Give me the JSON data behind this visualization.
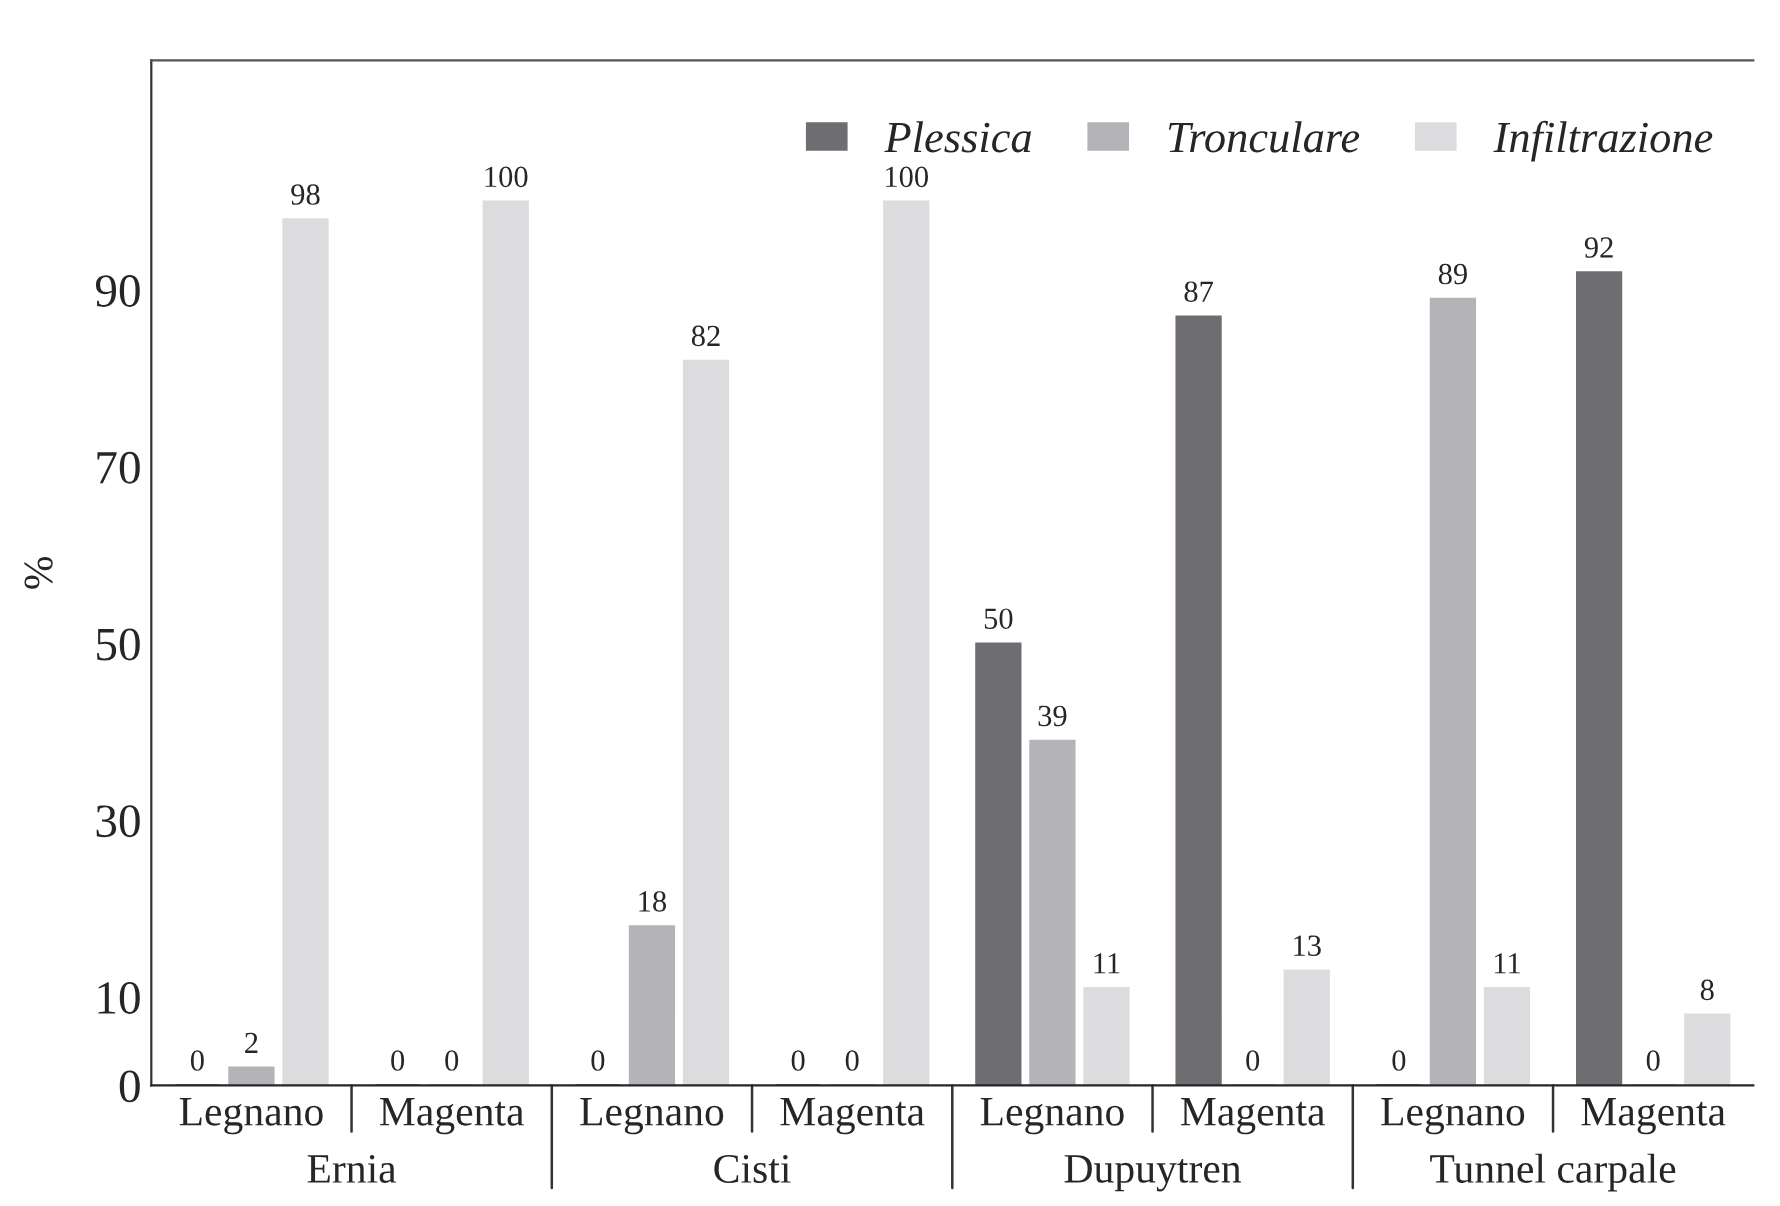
{
  "chart_data": {
    "type": "bar",
    "ylabel": "%",
    "categories": [
      "Legnano",
      "Magenta",
      "Legnano",
      "Magenta",
      "Legnano",
      "Magenta",
      "Legnano",
      "Magenta"
    ],
    "annotations": [
      "Ernia",
      "Cisti",
      "Dupuytren",
      "Tunnel carpale"
    ],
    "series": [
      {
        "name": "Plessica",
        "color": "#6e6e72",
        "values": [
          0,
          0,
          0,
          0,
          50,
          87,
          0,
          92
        ]
      },
      {
        "name": "Tronculare",
        "color": "#b4b4b8",
        "values": [
          2,
          0,
          18,
          0,
          39,
          0,
          89,
          0
        ]
      },
      {
        "name": "Infiltrazione",
        "color": "#dcdcde",
        "values": [
          98,
          100,
          82,
          100,
          11,
          13,
          11,
          8
        ]
      }
    ],
    "ylim": [
      0,
      116
    ],
    "yticks": [
      0,
      10,
      30,
      50,
      70,
      90
    ],
    "data_labels": true,
    "legend": "top right",
    "grid": false
  }
}
